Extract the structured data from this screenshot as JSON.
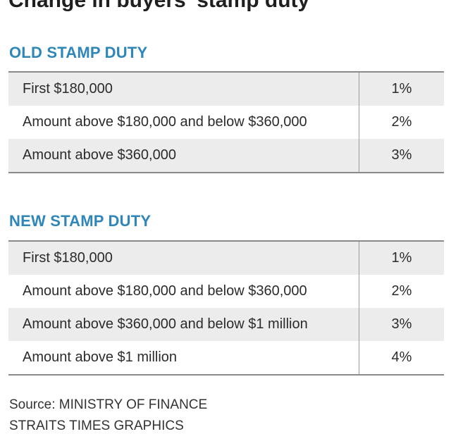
{
  "title": "Change in buyers' stamp duty",
  "old": {
    "heading": "OLD STAMP DUTY",
    "rows": [
      {
        "desc": "First $180,000",
        "rate": "1%"
      },
      {
        "desc": "Amount above $180,000 and below $360,000",
        "rate": "2%"
      },
      {
        "desc": "Amount above $360,000",
        "rate": "3%"
      }
    ]
  },
  "new": {
    "heading": "NEW STAMP DUTY",
    "rows": [
      {
        "desc": "First $180,000",
        "rate": "1%"
      },
      {
        "desc": "Amount above $180,000 and below $360,000",
        "rate": "2%"
      },
      {
        "desc": "Amount above $360,000 and below $1 million",
        "rate": "3%"
      },
      {
        "desc": "Amount above $1 million",
        "rate": "4%"
      }
    ]
  },
  "footer": {
    "source": "Source: MINISTRY OF FINANCE",
    "credit": "STRAITS TIMES GRAPHICS"
  },
  "colors": {
    "heading": "#2f86b8",
    "row_shade": "#ececec",
    "rule": "#8a8a8a"
  }
}
